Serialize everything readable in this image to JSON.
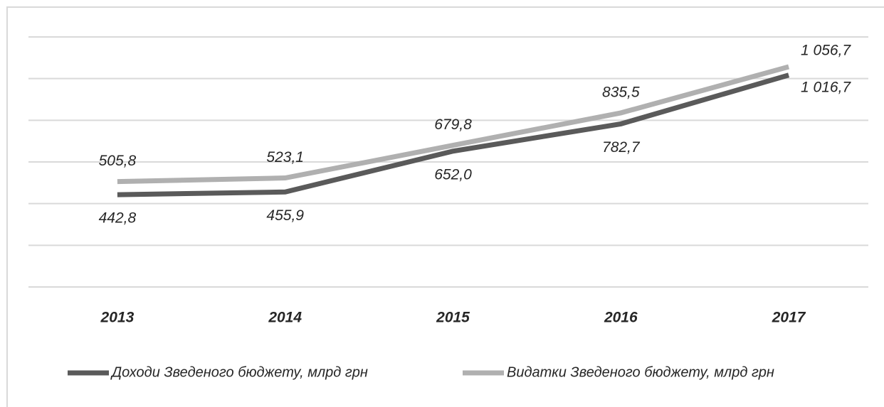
{
  "chart_data": {
    "type": "line",
    "categories": [
      "2013",
      "2014",
      "2015",
      "2016",
      "2017"
    ],
    "series": [
      {
        "name": "Доходи Зведеного бюджету, млрд грн",
        "color": "#5a5a5a",
        "values": [
          442.8,
          455.9,
          652.0,
          782.7,
          1016.7
        ],
        "value_labels": [
          "442,8",
          "455,9",
          "652,0",
          "782,7",
          "1 016,7"
        ]
      },
      {
        "name": "Видатки Зведеного бюджету, млрд грн",
        "color": "#b0b0b0",
        "values": [
          505.8,
          523.1,
          679.8,
          835.5,
          1056.7
        ],
        "value_labels": [
          "505,8",
          "523,1",
          "679,8",
          "835,5",
          "1 056,7"
        ]
      }
    ],
    "ylim": [
      0,
      1200
    ],
    "yticks": [
      0,
      200,
      400,
      600,
      800,
      1000,
      1200
    ],
    "grid": true,
    "legend": "bottom"
  }
}
